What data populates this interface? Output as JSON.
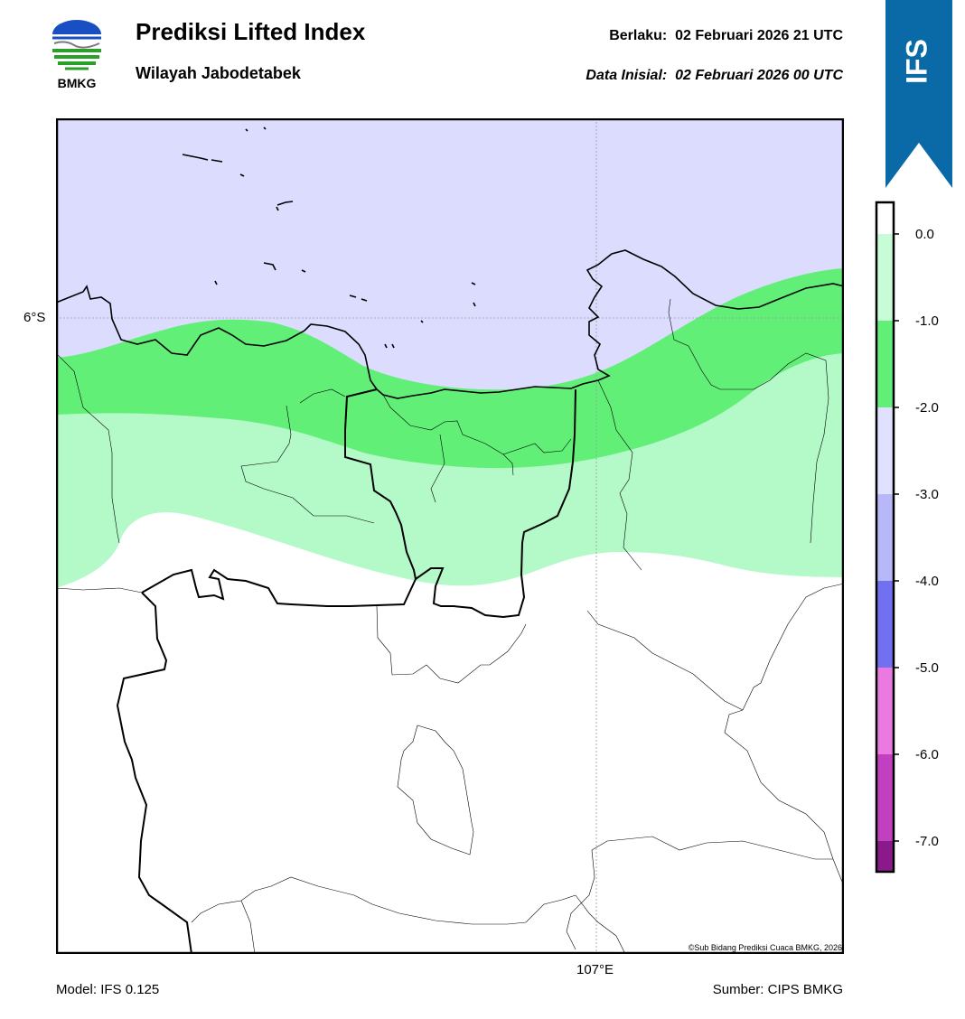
{
  "header": {
    "title": "Prediksi Lifted Index",
    "subtitle": "Wilayah Jabodetabek",
    "valid_label": "Berlaku:",
    "valid_value": "02 Februari 2026 21 UTC",
    "init_label": "Data Inisial:",
    "init_value": "02 Februari 2026 00 UTC"
  },
  "logo": {
    "text": "BMKG",
    "icon": "bmkg-logo-icon"
  },
  "ribbon": {
    "text": "IFS",
    "color": "#0a6aa8"
  },
  "map": {
    "lat_label": "6°S",
    "lon_label": "107°E",
    "copyright": "©Sub Bidang Prediksi Cuaca BMKG, 2026",
    "region_colors": {
      "purple_zone": "#dcdcff",
      "green_dark": "#62ef78",
      "green_light": "#b4fac8",
      "white": "#ffffff"
    }
  },
  "colorbar": {
    "ticks": [
      "0.0",
      "-1.0",
      "-2.0",
      "-3.0",
      "-4.0",
      "-5.0",
      "-6.0",
      "-7.0"
    ],
    "bands": [
      "#c8fcd6",
      "#62ef78",
      "#e0e0ff",
      "#b8b8f8",
      "#7070f0",
      "#e87ae0",
      "#c040c0",
      "#8a1a8a"
    ]
  },
  "footer": {
    "model": "Model: IFS 0.125",
    "source": "Sumber: CIPS BMKG"
  }
}
